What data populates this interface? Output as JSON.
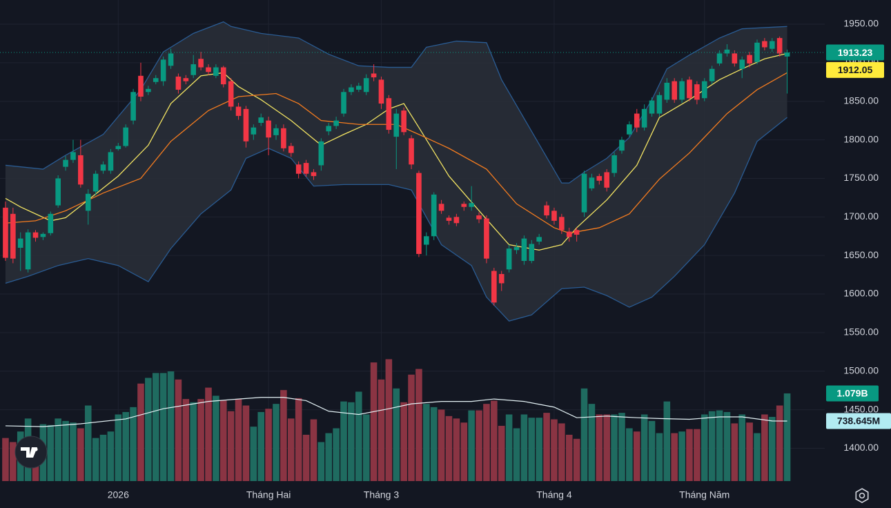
{
  "chart_data": {
    "type": "candlestick",
    "x": [
      0,
      1,
      2,
      3,
      4,
      5,
      6,
      7,
      8,
      9,
      10,
      11,
      12,
      13,
      14,
      15,
      16,
      17,
      18,
      19,
      20,
      21,
      22,
      23,
      24,
      25,
      26,
      27,
      28,
      29,
      30,
      31,
      32,
      33,
      34,
      35,
      36,
      37,
      38,
      39,
      40,
      41,
      42,
      43,
      44,
      45,
      46,
      47,
      48,
      49,
      50,
      51,
      52,
      53,
      54,
      55,
      56,
      57,
      58,
      59,
      60,
      61,
      62,
      63,
      64,
      65,
      66,
      67,
      68,
      69,
      70,
      71,
      72,
      73,
      74,
      75,
      76,
      77,
      78,
      79,
      80,
      81,
      82,
      83,
      84,
      85,
      86,
      87,
      88,
      89,
      90,
      91,
      92,
      93,
      94,
      95,
      96,
      97,
      98,
      99,
      100,
      101,
      102,
      103,
      104
    ],
    "open": [
      1712,
      1704,
      1660,
      1632,
      1680,
      1674,
      1679,
      1715,
      1765,
      1774,
      1780,
      1708,
      1733,
      1760,
      1760,
      1788,
      1792,
      1825,
      1883,
      1862,
      1875,
      1876,
      1896,
      1882,
      1880,
      1884,
      1905,
      1894,
      1883,
      1894,
      1876,
      1843,
      1840,
      1807,
      1822,
      1825,
      1806,
      1815,
      1792,
      1768,
      1770,
      1758,
      1767,
      1811,
      1818,
      1834,
      1862,
      1865,
      1862,
      1886,
      1878,
      1854,
      1804,
      1838,
      1802,
      1757,
      1664,
      1675,
      1717,
      1699,
      1700,
      1717,
      1713,
      1702,
      1698,
      1630,
      1626,
      1632,
      1657,
      1643,
      1643,
      1668,
      1715,
      1708,
      1700,
      1681,
      1683,
      1706,
      1737,
      1753,
      1758,
      1757,
      1786,
      1807,
      1834,
      1816,
      1834,
      1834,
      1852,
      1876,
      1852,
      1878,
      1872,
      1854,
      1876,
      1899,
      1912,
      1912,
      1892,
      1910,
      1901,
      1928,
      1918,
      1932,
      1908
    ],
    "high": [
      1720,
      1712,
      1680,
      1684,
      1683,
      1680,
      1707,
      1754,
      1779,
      1800,
      1800,
      1736,
      1760,
      1772,
      1788,
      1796,
      1820,
      1866,
      1900,
      1870,
      1884,
      1908,
      1918,
      1886,
      1884,
      1910,
      1914,
      1898,
      1898,
      1896,
      1880,
      1848,
      1844,
      1820,
      1834,
      1830,
      1820,
      1820,
      1796,
      1772,
      1774,
      1762,
      1802,
      1822,
      1830,
      1866,
      1872,
      1874,
      1885,
      1898,
      1882,
      1858,
      1840,
      1842,
      1806,
      1760,
      1680,
      1732,
      1722,
      1702,
      1704,
      1720,
      1740,
      1706,
      1702,
      1634,
      1630,
      1664,
      1666,
      1676,
      1670,
      1678,
      1720,
      1712,
      1704,
      1686,
      1686,
      1760,
      1756,
      1756,
      1762,
      1784,
      1804,
      1824,
      1840,
      1846,
      1855,
      1862,
      1880,
      1880,
      1880,
      1882,
      1876,
      1880,
      1896,
      1916,
      1924,
      1916,
      1908,
      1914,
      1930,
      1932,
      1932,
      1934,
      1917
    ],
    "low": [
      1643,
      1640,
      1630,
      1628,
      1668,
      1670,
      1676,
      1712,
      1760,
      1770,
      1738,
      1690,
      1728,
      1756,
      1756,
      1786,
      1790,
      1820,
      1850,
      1858,
      1872,
      1870,
      1892,
      1860,
      1872,
      1880,
      1890,
      1884,
      1880,
      1868,
      1838,
      1826,
      1790,
      1800,
      1818,
      1780,
      1800,
      1785,
      1778,
      1750,
      1752,
      1748,
      1760,
      1806,
      1814,
      1830,
      1858,
      1862,
      1858,
      1876,
      1840,
      1808,
      1762,
      1806,
      1762,
      1648,
      1650,
      1670,
      1704,
      1690,
      1688,
      1708,
      1708,
      1692,
      1640,
      1585,
      1604,
      1628,
      1652,
      1638,
      1640,
      1664,
      1698,
      1690,
      1678,
      1668,
      1668,
      1700,
      1734,
      1742,
      1733,
      1752,
      1782,
      1804,
      1810,
      1812,
      1830,
      1830,
      1848,
      1848,
      1848,
      1850,
      1846,
      1850,
      1872,
      1896,
      1908,
      1895,
      1880,
      1894,
      1898,
      1916,
      1914,
      1908,
      1860
    ],
    "close": [
      1647,
      1646,
      1672,
      1680,
      1673,
      1678,
      1704,
      1750,
      1774,
      1784,
      1742,
      1730,
      1756,
      1768,
      1784,
      1792,
      1816,
      1862,
      1856,
      1866,
      1880,
      1904,
      1912,
      1865,
      1876,
      1898,
      1894,
      1888,
      1894,
      1872,
      1843,
      1831,
      1798,
      1816,
      1829,
      1803,
      1815,
      1789,
      1783,
      1756,
      1756,
      1753,
      1798,
      1818,
      1825,
      1862,
      1868,
      1870,
      1880,
      1881,
      1847,
      1813,
      1834,
      1810,
      1768,
      1652,
      1675,
      1729,
      1708,
      1695,
      1692,
      1713,
      1718,
      1697,
      1646,
      1589,
      1614,
      1659,
      1661,
      1672,
      1665,
      1674,
      1702,
      1695,
      1683,
      1674,
      1677,
      1756,
      1751,
      1747,
      1738,
      1780,
      1800,
      1820,
      1816,
      1840,
      1851,
      1858,
      1874,
      1852,
      1876,
      1854,
      1852,
      1876,
      1892,
      1912,
      1917,
      1899,
      1904,
      1899,
      1926,
      1920,
      1928,
      1912,
      1913.23
    ],
    "up_color": "#089981",
    "down_color": "#f23645",
    "xlim": [
      -0.73,
      109
    ],
    "ylim": [
      1357.5,
      1981.3
    ],
    "xticks": [
      {
        "value": 15,
        "label": "2026"
      },
      {
        "value": 35,
        "label": "Tháng Hai"
      },
      {
        "value": 50,
        "label": "Tháng 3"
      },
      {
        "value": 73,
        "label": "Tháng 4"
      },
      {
        "value": 93,
        "label": "Tháng Năm"
      }
    ],
    "yticks": [
      {
        "value": 1400,
        "label": "1400.00"
      },
      {
        "value": 1450,
        "label": "1450.00"
      },
      {
        "value": 1500,
        "label": "1500.00"
      },
      {
        "value": 1550,
        "label": "1550.00"
      },
      {
        "value": 1600,
        "label": "1600.00"
      },
      {
        "value": 1650,
        "label": "1650.00"
      },
      {
        "value": 1700,
        "label": "1700.00"
      },
      {
        "value": 1750,
        "label": "1750.00"
      },
      {
        "value": 1800,
        "label": "1800.00"
      },
      {
        "value": 1850,
        "label": "1850.00"
      },
      {
        "value": 1900,
        "label": "1900.00"
      },
      {
        "value": 1950,
        "label": "1950.00"
      }
    ],
    "grid": true,
    "band": {
      "color": "#2a5c94",
      "fill": "#2a2f38",
      "upper": {
        "x": [
          0,
          5,
          8,
          13,
          18,
          21,
          25,
          29,
          30,
          34,
          39,
          43,
          47,
          51,
          54,
          56,
          60,
          64,
          66,
          70,
          74,
          75,
          77,
          80,
          83,
          86,
          88,
          91,
          95,
          98,
          104
        ],
        "values": [
          1767,
          1762,
          1780,
          1807,
          1865,
          1914,
          1938,
          1953,
          1947,
          1938,
          1932,
          1911,
          1896,
          1894,
          1894,
          1920,
          1928,
          1926,
          1878,
          1811,
          1744,
          1744,
          1758,
          1776,
          1803,
          1852,
          1892,
          1910,
          1932,
          1944,
          1947
        ]
      },
      "lower": {
        "x": [
          0,
          3,
          7,
          11,
          15,
          19,
          22,
          26,
          30,
          32,
          35,
          38,
          41,
          45,
          51,
          54,
          58,
          62,
          64,
          67,
          70,
          74,
          77,
          80,
          83,
          86,
          89,
          93,
          97,
          100,
          104
        ],
        "values": [
          1614,
          1623,
          1637,
          1646,
          1637,
          1616,
          1659,
          1704,
          1735,
          1776,
          1789,
          1776,
          1740,
          1742,
          1742,
          1735,
          1664,
          1637,
          1596,
          1565,
          1573,
          1607,
          1609,
          1598,
          1583,
          1596,
          1623,
          1664,
          1731,
          1798,
          1829
        ]
      }
    },
    "overlays": [
      {
        "color": "#f5e663",
        "x": [
          0,
          2,
          6,
          8,
          11,
          15,
          19,
          22,
          26,
          29,
          31,
          34,
          38,
          42,
          45,
          48,
          51,
          53,
          55,
          59,
          64,
          67,
          71,
          74,
          76,
          80,
          84,
          87,
          91,
          95,
          98,
          101,
          104
        ],
        "values": [
          1724,
          1713,
          1695,
          1699,
          1722,
          1753,
          1793,
          1847,
          1883,
          1887,
          1869,
          1852,
          1825,
          1793,
          1807,
          1820,
          1840,
          1847,
          1816,
          1753,
          1697,
          1664,
          1657,
          1664,
          1686,
          1722,
          1767,
          1829,
          1852,
          1878,
          1892,
          1905,
          1912.05
        ],
        "label_color": "#ffeb3b"
      },
      {
        "color": "#f57c1f",
        "x": [
          0,
          4,
          8,
          13,
          18,
          22,
          27,
          31,
          36,
          39,
          42,
          47,
          52,
          55,
          59,
          64,
          68,
          73,
          75,
          79,
          83,
          87,
          91,
          96,
          100,
          104
        ],
        "values": [
          1692,
          1695,
          1708,
          1731,
          1750,
          1798,
          1838,
          1856,
          1860,
          1847,
          1825,
          1820,
          1820,
          1807,
          1789,
          1762,
          1717,
          1686,
          1679,
          1686,
          1704,
          1749,
          1783,
          1834,
          1865,
          1887
        ]
      }
    ],
    "volume": {
      "values": [
        0.53,
        0.48,
        0.61,
        0.77,
        0.44,
        0.7,
        0.69,
        0.77,
        0.74,
        0.72,
        0.65,
        0.93,
        0.53,
        0.57,
        0.61,
        0.82,
        0.85,
        0.91,
        1.2,
        1.27,
        1.33,
        1.33,
        1.35,
        1.25,
        1.01,
        0.97,
        1.01,
        1.15,
        1.05,
        0.99,
        0.86,
        1.01,
        0.93,
        0.67,
        0.85,
        0.89,
        0.95,
        1.12,
        0.77,
        1.02,
        0.57,
        0.76,
        0.48,
        0.59,
        0.65,
        0.98,
        0.97,
        1.1,
        0.82,
        1.46,
        1.25,
        1.5,
        1.14,
        0.97,
        1.31,
        1.38,
        0.95,
        0.91,
        0.88,
        0.8,
        0.77,
        0.72,
        0.87,
        0.87,
        0.95,
        0.99,
        0.68,
        0.82,
        0.65,
        0.82,
        0.78,
        0.78,
        0.84,
        0.76,
        0.71,
        0.57,
        0.52,
        1.14,
        0.95,
        0.82,
        0.82,
        0.82,
        0.84,
        0.65,
        0.61,
        0.82,
        0.74,
        0.59,
        0.98,
        0.59,
        0.61,
        0.64,
        0.64,
        0.82,
        0.86,
        0.87,
        0.85,
        0.71,
        0.82,
        0.72,
        0.59,
        0.82,
        0.79,
        0.93,
        1.079
      ],
      "last_label": "1.079B",
      "up_color": "#1f6b60",
      "down_color": "#8a3443",
      "y2lim": [
        0,
        5.92
      ],
      "ma": {
        "color": "#e6f4f7",
        "label_color": "#b2ebf2",
        "x": [
          0,
          5,
          10,
          16,
          21,
          27,
          31,
          34,
          37,
          40,
          43,
          47,
          51,
          54,
          58,
          62,
          65,
          69,
          73,
          76,
          80,
          84,
          87,
          91,
          95,
          98,
          102,
          104
        ],
        "values": [
          0.68,
          0.67,
          0.705,
          0.765,
          0.89,
          0.98,
          1.01,
          1.03,
          1.03,
          0.99,
          0.86,
          0.82,
          0.89,
          0.95,
          0.98,
          0.98,
          1.01,
          0.98,
          0.91,
          0.78,
          0.8,
          0.78,
          0.77,
          0.76,
          0.79,
          0.79,
          0.74,
          0.738645
        ],
        "last_label": "738.645M"
      }
    }
  }
}
